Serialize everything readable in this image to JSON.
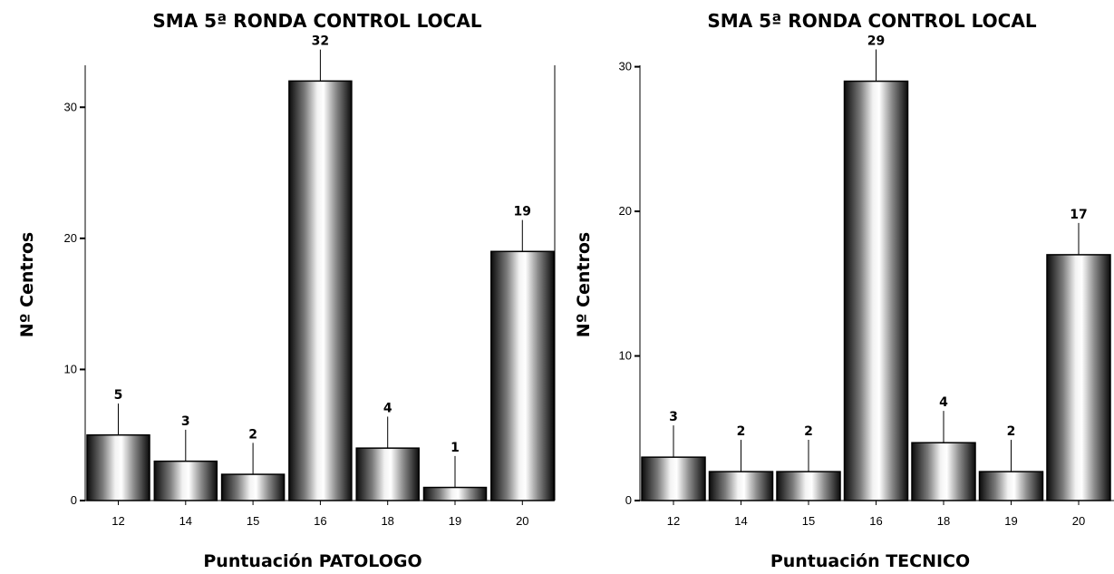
{
  "chart_data": [
    {
      "type": "bar",
      "title": "SMA 5ª RONDA CONTROL LOCAL",
      "xlabel": "Puntuación PATOLOGO",
      "ylabel": "Nº Centros",
      "categories": [
        "12",
        "14",
        "15",
        "16",
        "18",
        "19",
        "20"
      ],
      "values": [
        5,
        3,
        2,
        32,
        4,
        1,
        19
      ],
      "data_labels": [
        "5",
        "3",
        "2",
        "32",
        "4",
        "1",
        "19"
      ],
      "yticks": [
        "0",
        "10",
        "20",
        "30"
      ],
      "ylim": [
        0,
        33.2
      ],
      "error_bar_extent": 2.4,
      "grid": false,
      "bar_style": "cylindrical gray gradient"
    },
    {
      "type": "bar",
      "title": "SMA 5ª RONDA CONTROL LOCAL",
      "xlabel": "Puntuación TECNICO",
      "ylabel": "Nº Centros",
      "categories": [
        "12",
        "14",
        "15",
        "16",
        "18",
        "19",
        "20"
      ],
      "values": [
        3,
        2,
        2,
        29,
        4,
        2,
        17
      ],
      "data_labels": [
        "3",
        "2",
        "2",
        "29",
        "4",
        "2",
        "17"
      ],
      "yticks": [
        "0",
        "10",
        "20",
        "30"
      ],
      "ylim": [
        0,
        30.1
      ],
      "error_bar_extent": 2.2,
      "grid": false,
      "bar_style": "cylindrical gray gradient"
    }
  ]
}
